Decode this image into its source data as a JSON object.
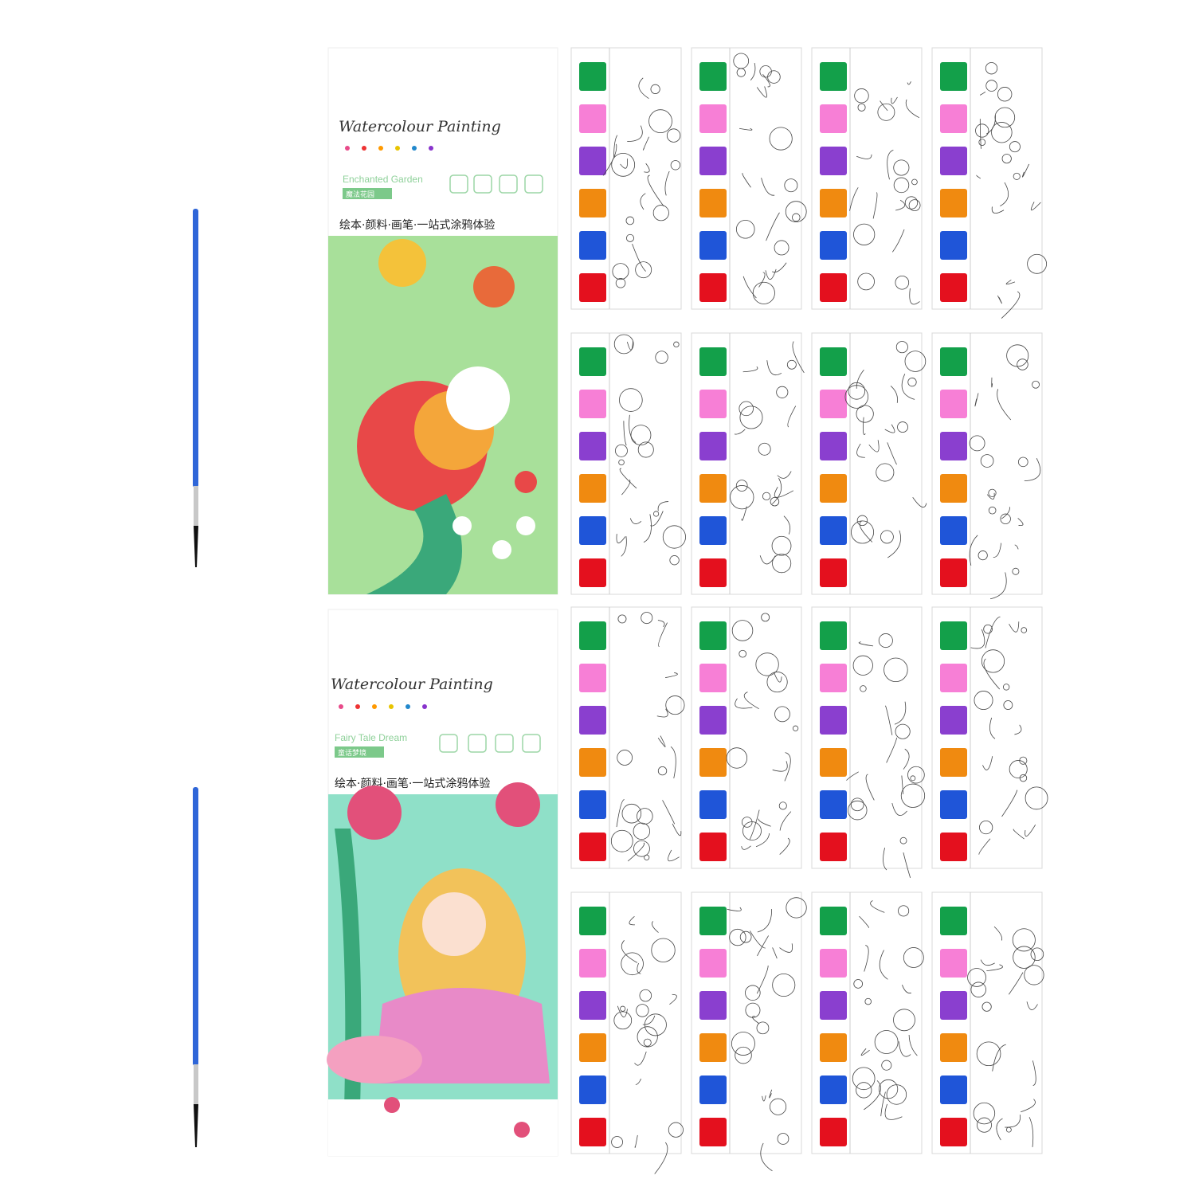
{
  "covers": [
    {
      "title": "Watercolour Painting",
      "subtitle": "Enchanted Garden",
      "subtitle_cn": "魔法花园",
      "tagline": "绘本·颜料·画笔·一站式涂鸦体验"
    },
    {
      "title": "Watercolour Painting",
      "subtitle": "Fairy Tale Dream",
      "subtitle_cn": "童话梦境",
      "tagline": "绘本·颜料·画笔·一站式涂鸦体验"
    }
  ]
}
